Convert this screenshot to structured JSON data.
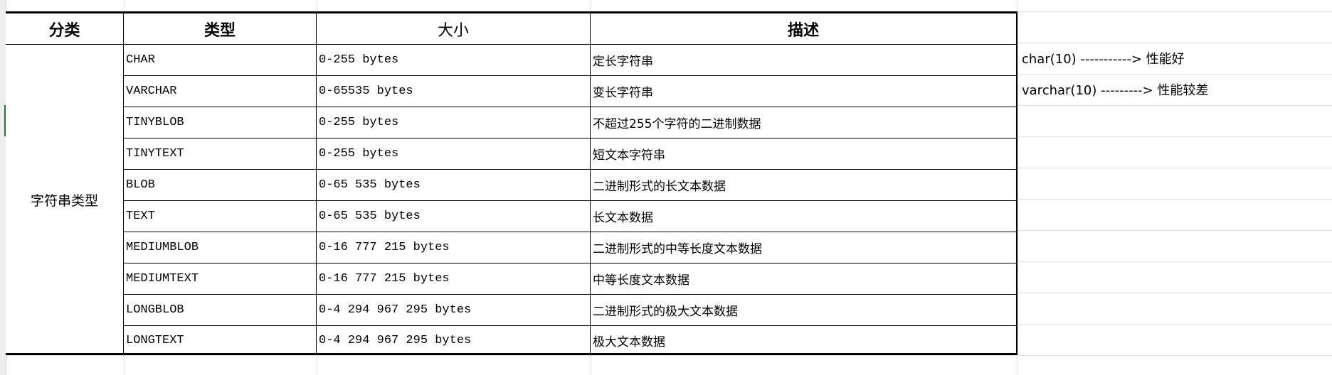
{
  "table": {
    "headers": [
      "分类",
      "类型",
      "大小",
      "描述"
    ],
    "category": "字符串类型",
    "rows": [
      {
        "type": "CHAR",
        "size": "0-255 bytes",
        "desc": "定长字符串"
      },
      {
        "type": "VARCHAR",
        "size": "0-65535 bytes",
        "desc": "变长字符串"
      },
      {
        "type": "TINYBLOB",
        "size": "0-255 bytes",
        "desc": "不超过255个字符的二进制数据"
      },
      {
        "type": "TINYTEXT",
        "size": "0-255 bytes",
        "desc": "短文本字符串"
      },
      {
        "type": "BLOB",
        "size": "0-65 535 bytes",
        "desc": "二进制形式的长文本数据"
      },
      {
        "type": "TEXT",
        "size": "0-65 535 bytes",
        "desc": "长文本数据"
      },
      {
        "type": "MEDIUMBLOB",
        "size": "0-16 777 215 bytes",
        "desc": "二进制形式的中等长度文本数据"
      },
      {
        "type": "MEDIUMTEXT",
        "size": "0-16 777 215 bytes",
        "desc": "中等长度文本数据"
      },
      {
        "type": "LONGBLOB",
        "size": "0-4 294 967 295 bytes",
        "desc": "二进制形式的极大文本数据"
      },
      {
        "type": "LONGTEXT",
        "size": "0-4 294 967 295 bytes",
        "desc": "极大文本数据"
      }
    ]
  },
  "notes": [
    "char(10) -----------> 性能好",
    "varchar(10) ---------> 性能较差"
  ],
  "colors": {
    "border": "#000000",
    "gridline": "#e1e1e1",
    "selection": "#217346"
  }
}
